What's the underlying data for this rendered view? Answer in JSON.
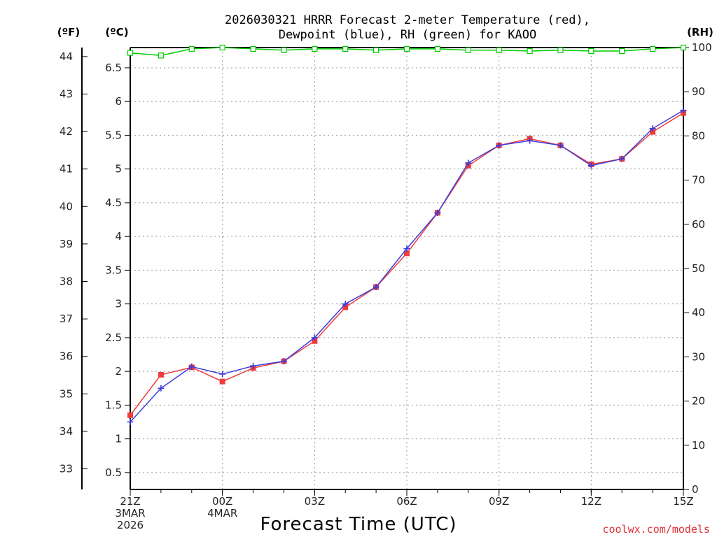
{
  "chart_data": {
    "type": "line",
    "title_line1": "2026030321 HRRR Forecast 2-meter Temperature (red),",
    "title_line2": "Dewpoint (blue), RH (green) for KAOO",
    "units": {
      "fahrenheit": "(ºF)",
      "celsius": "(ºC)",
      "rh": "(RH)"
    },
    "xlabel": "Forecast Time (UTC)",
    "credit": "coolwx.com/models",
    "x_hours": [
      0,
      1,
      2,
      3,
      4,
      5,
      6,
      7,
      8,
      9,
      10,
      11,
      12,
      13,
      14,
      15,
      16,
      17,
      18
    ],
    "xlim": [
      0,
      18
    ],
    "celsius_lim": [
      0.25,
      6.8
    ],
    "rh_lim": [
      0,
      100
    ],
    "x_ticks": [
      {
        "hour": 0,
        "lines": [
          "21Z",
          "3MAR",
          "2026"
        ]
      },
      {
        "hour": 3,
        "lines": [
          "00Z",
          "4MAR"
        ]
      },
      {
        "hour": 6,
        "lines": [
          "03Z"
        ]
      },
      {
        "hour": 9,
        "lines": [
          "06Z"
        ]
      },
      {
        "hour": 12,
        "lines": [
          "09Z"
        ]
      },
      {
        "hour": 15,
        "lines": [
          "12Z"
        ]
      },
      {
        "hour": 18,
        "lines": [
          "15Z"
        ]
      }
    ],
    "celsius_ticks": [
      "0.5",
      "1",
      "1.5",
      "2",
      "2.5",
      "3",
      "3.5",
      "4",
      "4.5",
      "5",
      "5.5",
      "6",
      "6.5"
    ],
    "fahrenheit_ticks": [
      "33",
      "34",
      "35",
      "36",
      "37",
      "38",
      "39",
      "40",
      "41",
      "42",
      "43",
      "44"
    ],
    "rh_ticks": [
      "0",
      "10",
      "20",
      "30",
      "40",
      "50",
      "60",
      "70",
      "80",
      "90",
      "100"
    ],
    "series": [
      {
        "name": "Temperature",
        "color": "#f03c3c",
        "marker": "square",
        "values": [
          1.35,
          1.95,
          2.06,
          1.85,
          2.05,
          2.15,
          2.45,
          2.95,
          3.25,
          3.75,
          4.35,
          5.05,
          5.35,
          5.45,
          5.35,
          5.07,
          5.15,
          5.55,
          5.83
        ]
      },
      {
        "name": "Dewpoint",
        "color": "#3c3cdc",
        "marker": "plus",
        "values": [
          1.25,
          1.75,
          2.07,
          1.96,
          2.08,
          2.15,
          2.5,
          3.0,
          3.25,
          3.82,
          4.35,
          5.09,
          5.35,
          5.42,
          5.35,
          5.05,
          5.15,
          5.6,
          5.87
        ]
      },
      {
        "name": "RH",
        "color": "#00cc00",
        "marker": "open-square",
        "values": [
          98.8,
          98.2,
          99.7,
          100,
          99.7,
          99.4,
          99.7,
          99.7,
          99.4,
          99.7,
          99.7,
          99.4,
          99.4,
          99.2,
          99.4,
          99.2,
          99.2,
          99.7,
          100
        ]
      }
    ]
  }
}
